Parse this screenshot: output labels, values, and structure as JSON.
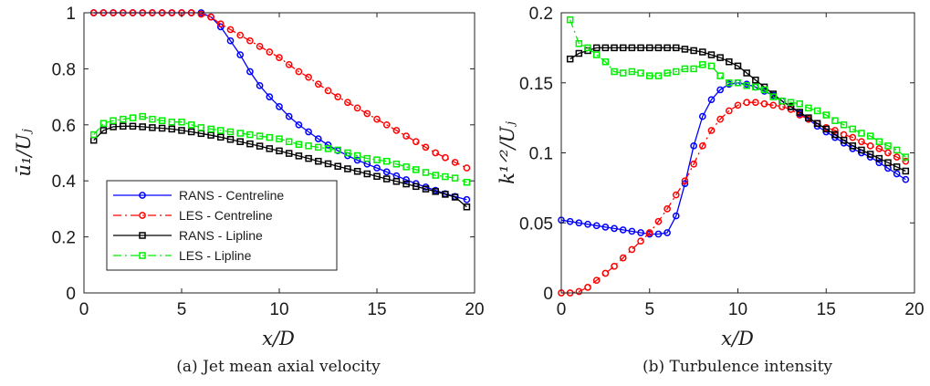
{
  "chart_data": [
    {
      "type": "line",
      "id": "a",
      "caption": "(a) Jet mean axial velocity",
      "xlabel": "x/D",
      "ylabel": "ū₁/Uⱼ",
      "xlim": [
        0,
        20
      ],
      "ylim": [
        0,
        1
      ],
      "xticks": [
        0,
        5,
        10,
        15,
        20
      ],
      "yticks": [
        0,
        0.2,
        0.4,
        0.6,
        0.8,
        1
      ],
      "ytick_labels": [
        "0",
        "0.2",
        "0.4",
        "0.6",
        "0.8",
        "1"
      ],
      "legend": "lower-left",
      "grid": false,
      "series": [
        {
          "name": "RANS - Centreline",
          "color": "#0000ff",
          "marker": "circle",
          "dash": "",
          "x": [
            0.5,
            1,
            1.5,
            2,
            2.5,
            3,
            3.5,
            4,
            4.5,
            5,
            5.5,
            6,
            6.5,
            7,
            7.5,
            8,
            8.5,
            9,
            9.5,
            10,
            10.5,
            11,
            11.5,
            12,
            12.5,
            13,
            13.5,
            14,
            14.5,
            15,
            15.5,
            16,
            16.5,
            17,
            17.5,
            18,
            18.5,
            19,
            19.6
          ],
          "y": [
            1,
            1,
            1,
            1,
            1,
            1,
            1,
            1,
            1,
            1,
            1,
            1,
            0.985,
            0.95,
            0.9,
            0.85,
            0.79,
            0.74,
            0.7,
            0.665,
            0.63,
            0.6,
            0.575,
            0.55,
            0.528,
            0.508,
            0.49,
            0.474,
            0.46,
            0.446,
            0.432,
            0.418,
            0.404,
            0.39,
            0.378,
            0.366,
            0.354,
            0.344,
            0.333
          ]
        },
        {
          "name": "LES - Centreline",
          "color": "#ff0000",
          "marker": "circle",
          "dash": "9 4 2 4",
          "x": [
            0.5,
            1,
            1.5,
            2,
            2.5,
            3,
            3.5,
            4,
            4.5,
            5,
            5.5,
            6,
            6.5,
            7,
            7.5,
            8,
            8.5,
            9,
            9.5,
            10,
            10.5,
            11,
            11.5,
            12,
            12.5,
            13,
            13.5,
            14,
            14.5,
            15,
            15.5,
            16,
            16.5,
            17,
            17.5,
            18,
            18.5,
            19,
            19.6
          ],
          "y": [
            1,
            1,
            1,
            1,
            1,
            1,
            1,
            1,
            1,
            1,
            1,
            0.995,
            0.985,
            0.96,
            0.94,
            0.92,
            0.9,
            0.88,
            0.86,
            0.84,
            0.815,
            0.79,
            0.77,
            0.745,
            0.722,
            0.7,
            0.68,
            0.66,
            0.64,
            0.62,
            0.6,
            0.58,
            0.56,
            0.54,
            0.52,
            0.5,
            0.483,
            0.466,
            0.446
          ]
        },
        {
          "name": "RANS - Lipline",
          "color": "#000000",
          "marker": "square",
          "dash": "",
          "x": [
            0.5,
            1,
            1.5,
            2,
            2.5,
            3,
            3.5,
            4,
            4.5,
            5,
            5.5,
            6,
            6.5,
            7,
            7.5,
            8,
            8.5,
            9,
            9.5,
            10,
            10.5,
            11,
            11.5,
            12,
            12.5,
            13,
            13.5,
            14,
            14.5,
            15,
            15.5,
            16,
            16.5,
            17,
            17.5,
            18,
            18.5,
            19,
            19.6
          ],
          "y": [
            0.545,
            0.58,
            0.593,
            0.595,
            0.595,
            0.593,
            0.59,
            0.588,
            0.585,
            0.58,
            0.575,
            0.569,
            0.563,
            0.556,
            0.548,
            0.54,
            0.532,
            0.524,
            0.515,
            0.507,
            0.498,
            0.489,
            0.48,
            0.47,
            0.461,
            0.452,
            0.443,
            0.434,
            0.425,
            0.416,
            0.407,
            0.398,
            0.389,
            0.38,
            0.371,
            0.362,
            0.352,
            0.342,
            0.307
          ]
        },
        {
          "name": "LES - Lipline",
          "color": "#00ee00",
          "marker": "square",
          "dash": "9 4 2 4",
          "x": [
            0.5,
            1,
            1.5,
            2,
            2.5,
            3,
            3.5,
            4,
            4.5,
            5,
            5.5,
            6,
            6.5,
            7,
            7.5,
            8,
            8.5,
            9,
            9.5,
            10,
            10.5,
            11,
            11.5,
            12,
            12.5,
            13,
            13.5,
            14,
            14.5,
            15,
            15.5,
            16,
            16.5,
            17,
            17.5,
            18,
            18.5,
            19,
            19.6
          ],
          "y": [
            0.565,
            0.605,
            0.615,
            0.62,
            0.625,
            0.63,
            0.62,
            0.615,
            0.61,
            0.61,
            0.6,
            0.59,
            0.585,
            0.58,
            0.575,
            0.57,
            0.565,
            0.56,
            0.555,
            0.55,
            0.54,
            0.53,
            0.525,
            0.52,
            0.515,
            0.51,
            0.5,
            0.49,
            0.48,
            0.475,
            0.47,
            0.46,
            0.45,
            0.44,
            0.43,
            0.42,
            0.415,
            0.41,
            0.395
          ]
        }
      ]
    },
    {
      "type": "line",
      "id": "b",
      "caption": "(b) Turbulence intensity",
      "xlabel": "x/D",
      "ylabel": "k¹ᐟ²/Uⱼ",
      "xlim": [
        0,
        20
      ],
      "ylim": [
        0,
        0.2
      ],
      "xticks": [
        0,
        5,
        10,
        15,
        20
      ],
      "yticks": [
        0,
        0.05,
        0.1,
        0.15,
        0.2
      ],
      "ytick_labels": [
        "0",
        "0.05",
        "0.1",
        "0.15",
        "0.2"
      ],
      "grid": false,
      "series": [
        {
          "name": "RANS - Centreline",
          "color": "#0000ff",
          "marker": "circle",
          "dash": "",
          "x": [
            0,
            0.5,
            1,
            1.5,
            2,
            2.5,
            3,
            3.5,
            4,
            4.5,
            5,
            5.5,
            6,
            6.5,
            7,
            7.5,
            8,
            8.5,
            9,
            9.5,
            10,
            10.5,
            11,
            11.5,
            12,
            12.5,
            13,
            13.5,
            14,
            14.5,
            15,
            15.5,
            16,
            16.5,
            17,
            17.5,
            18,
            18.5,
            19,
            19.5
          ],
          "y": [
            0.052,
            0.051,
            0.05,
            0.049,
            0.048,
            0.047,
            0.046,
            0.045,
            0.044,
            0.043,
            0.042,
            0.042,
            0.043,
            0.055,
            0.078,
            0.105,
            0.126,
            0.138,
            0.145,
            0.149,
            0.15,
            0.149,
            0.147,
            0.144,
            0.141,
            0.137,
            0.133,
            0.128,
            0.124,
            0.119,
            0.115,
            0.111,
            0.107,
            0.103,
            0.1,
            0.097,
            0.093,
            0.089,
            0.085,
            0.081
          ]
        },
        {
          "name": "LES - Centreline",
          "color": "#ff0000",
          "marker": "circle",
          "dash": "9 4 2 4",
          "x": [
            0,
            0.5,
            1,
            1.5,
            2,
            2.5,
            3,
            3.5,
            4,
            4.5,
            5,
            5.5,
            6,
            6.5,
            7,
            7.5,
            8,
            8.5,
            9,
            9.5,
            10,
            10.5,
            11,
            11.5,
            12,
            12.5,
            13,
            13.5,
            14,
            14.5,
            15,
            15.5,
            16,
            16.5,
            17,
            17.5,
            18,
            18.5,
            19,
            19.5
          ],
          "y": [
            0,
            0,
            0.001,
            0.004,
            0.009,
            0.014,
            0.019,
            0.025,
            0.031,
            0.037,
            0.043,
            0.051,
            0.06,
            0.07,
            0.08,
            0.092,
            0.105,
            0.116,
            0.124,
            0.13,
            0.134,
            0.136,
            0.136,
            0.135,
            0.134,
            0.133,
            0.131,
            0.127,
            0.124,
            0.121,
            0.118,
            0.116,
            0.113,
            0.111,
            0.108,
            0.105,
            0.103,
            0.1,
            0.097,
            0.094
          ]
        },
        {
          "name": "RANS - Lipline",
          "color": "#000000",
          "marker": "square",
          "dash": "",
          "x": [
            0.5,
            1,
            1.5,
            2,
            2.5,
            3,
            3.5,
            4,
            4.5,
            5,
            5.5,
            6,
            6.5,
            7,
            7.5,
            8,
            8.5,
            9,
            9.5,
            10,
            10.5,
            11,
            11.5,
            12,
            12.5,
            13,
            13.5,
            14,
            14.5,
            15,
            15.5,
            16,
            16.5,
            17,
            17.5,
            18,
            18.5,
            19,
            19.5
          ],
          "y": [
            0.167,
            0.171,
            0.173,
            0.175,
            0.175,
            0.175,
            0.175,
            0.175,
            0.175,
            0.175,
            0.175,
            0.175,
            0.175,
            0.174,
            0.173,
            0.172,
            0.17,
            0.168,
            0.165,
            0.162,
            0.157,
            0.152,
            0.147,
            0.142,
            0.137,
            0.133,
            0.129,
            0.125,
            0.121,
            0.117,
            0.113,
            0.109,
            0.105,
            0.102,
            0.099,
            0.096,
            0.093,
            0.09,
            0.087
          ]
        },
        {
          "name": "LES - Lipline",
          "color": "#00ee00",
          "marker": "square",
          "dash": "9 4 2 4",
          "x": [
            0.5,
            1,
            1.5,
            2,
            2.5,
            3,
            3.5,
            4,
            4.5,
            5,
            5.5,
            6,
            6.5,
            7,
            7.5,
            8,
            8.5,
            9,
            9.5,
            10,
            10.5,
            11,
            11.5,
            12,
            12.5,
            13,
            13.5,
            14,
            14.5,
            15,
            15.5,
            16,
            16.5,
            17,
            17.5,
            18,
            18.5,
            19,
            19.5
          ],
          "y": [
            0.195,
            0.178,
            0.175,
            0.17,
            0.165,
            0.158,
            0.157,
            0.158,
            0.157,
            0.155,
            0.155,
            0.157,
            0.158,
            0.16,
            0.16,
            0.163,
            0.162,
            0.155,
            0.15,
            0.15,
            0.148,
            0.147,
            0.145,
            0.14,
            0.137,
            0.136,
            0.135,
            0.132,
            0.13,
            0.127,
            0.123,
            0.12,
            0.117,
            0.114,
            0.112,
            0.108,
            0.105,
            0.102,
            0.097
          ]
        }
      ]
    }
  ]
}
